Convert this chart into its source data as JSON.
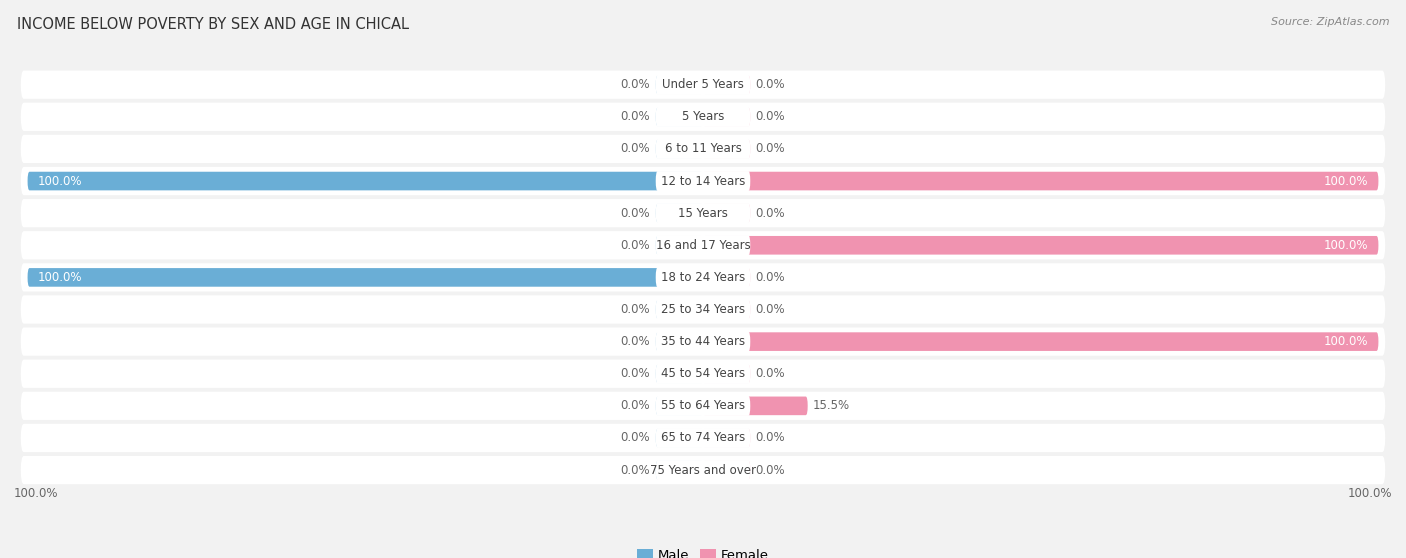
{
  "title": "INCOME BELOW POVERTY BY SEX AND AGE IN CHICAL",
  "source": "Source: ZipAtlas.com",
  "categories": [
    "Under 5 Years",
    "5 Years",
    "6 to 11 Years",
    "12 to 14 Years",
    "15 Years",
    "16 and 17 Years",
    "18 to 24 Years",
    "25 to 34 Years",
    "35 to 44 Years",
    "45 to 54 Years",
    "55 to 64 Years",
    "65 to 74 Years",
    "75 Years and over"
  ],
  "male": [
    0.0,
    0.0,
    0.0,
    100.0,
    0.0,
    0.0,
    100.0,
    0.0,
    0.0,
    0.0,
    0.0,
    0.0,
    0.0
  ],
  "female": [
    0.0,
    0.0,
    0.0,
    100.0,
    0.0,
    100.0,
    0.0,
    0.0,
    100.0,
    0.0,
    15.5,
    0.0,
    0.0
  ],
  "male_color": "#6aaed6",
  "female_color": "#f093b0",
  "male_label": "Male",
  "female_label": "Female",
  "bg_color": "#f2f2f2",
  "row_bg_color": "#ffffff",
  "xlim": 100,
  "title_fontsize": 10.5,
  "source_fontsize": 8,
  "label_fontsize": 8.5,
  "cat_fontsize": 8.5,
  "bar_height": 0.58,
  "stub_size": 7.0,
  "value_label_color": "#666666",
  "zero_text_color": "#666666"
}
